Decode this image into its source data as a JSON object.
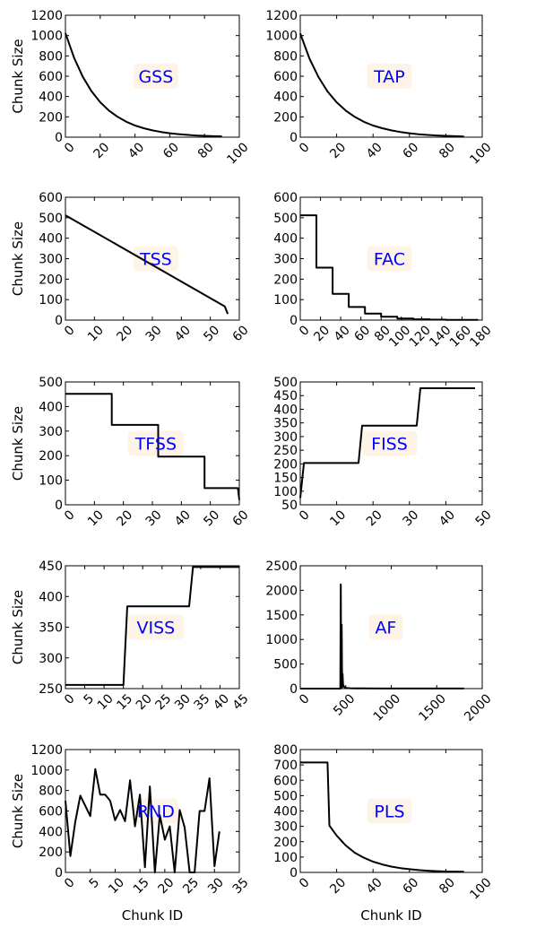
{
  "colors": {
    "line": "#000000",
    "annotation_text": "#0000ff",
    "annotation_box": "#fdf3e6",
    "background": "#ffffff"
  },
  "chart_data": [
    {
      "type": "line",
      "annotation": "GSS",
      "ylabel": "Chunk Size",
      "xlabel": "",
      "xlim": [
        0,
        100
      ],
      "ylim": [
        0,
        1200
      ],
      "xticks": [
        0,
        20,
        40,
        60,
        80,
        100
      ],
      "yticks": [
        0,
        200,
        400,
        600,
        800,
        1000,
        1200
      ],
      "grid": false,
      "series": [
        {
          "x": [
            0,
            5,
            10,
            15,
            20,
            25,
            30,
            35,
            40,
            45,
            50,
            55,
            60,
            65,
            70,
            75,
            80,
            85,
            90
          ],
          "y": [
            1024,
            780,
            594,
            452,
            344,
            262,
            200,
            152,
            116,
            88,
            67,
            51,
            39,
            30,
            23,
            17,
            13,
            10,
            8
          ]
        }
      ]
    },
    {
      "type": "line",
      "annotation": "TAP",
      "ylabel": "",
      "xlabel": "",
      "xlim": [
        0,
        100
      ],
      "ylim": [
        0,
        1200
      ],
      "xticks": [
        0,
        20,
        40,
        60,
        80,
        100
      ],
      "yticks": [
        0,
        200,
        400,
        600,
        800,
        1000,
        1200
      ],
      "grid": false,
      "series": [
        {
          "x": [
            0,
            5,
            10,
            15,
            20,
            25,
            30,
            35,
            40,
            45,
            50,
            55,
            60,
            65,
            70,
            75,
            80,
            85,
            90
          ],
          "y": [
            1020,
            777,
            592,
            450,
            343,
            261,
            199,
            151,
            115,
            88,
            67,
            51,
            39,
            29,
            22,
            17,
            13,
            10,
            7
          ]
        }
      ]
    },
    {
      "type": "line",
      "annotation": "TSS",
      "ylabel": "Chunk Size",
      "xlabel": "",
      "xlim": [
        0,
        60
      ],
      "ylim": [
        0,
        600
      ],
      "xticks": [
        0,
        10,
        20,
        30,
        40,
        50,
        60
      ],
      "yticks": [
        0,
        100,
        200,
        300,
        400,
        500,
        600
      ],
      "grid": false,
      "series": [
        {
          "x": [
            0,
            55,
            56
          ],
          "y": [
            512,
            67,
            30
          ]
        }
      ]
    },
    {
      "type": "line",
      "annotation": "FAC",
      "ylabel": "",
      "xlabel": "",
      "xlim": [
        0,
        180
      ],
      "ylim": [
        0,
        600
      ],
      "xticks": [
        0,
        20,
        40,
        60,
        80,
        100,
        120,
        140,
        160,
        180
      ],
      "yticks": [
        0,
        100,
        200,
        300,
        400,
        500,
        600
      ],
      "grid": false,
      "series": [
        {
          "x": [
            0,
            16,
            16,
            32,
            32,
            48,
            48,
            64,
            64,
            80,
            80,
            96,
            96,
            112,
            112,
            128,
            128,
            144,
            144,
            176
          ],
          "y": [
            512,
            512,
            256,
            256,
            128,
            128,
            64,
            64,
            32,
            32,
            16,
            16,
            8,
            8,
            4,
            4,
            2,
            2,
            1,
            1
          ]
        }
      ]
    },
    {
      "type": "line",
      "annotation": "TFSS",
      "ylabel": "Chunk Size",
      "xlabel": "",
      "xlim": [
        0,
        60
      ],
      "ylim": [
        0,
        500
      ],
      "xticks": [
        0,
        10,
        20,
        30,
        40,
        50,
        60
      ],
      "yticks": [
        0,
        100,
        200,
        300,
        400,
        500
      ],
      "grid": false,
      "series": [
        {
          "x": [
            0,
            16,
            16,
            32,
            32,
            48,
            48,
            59.5,
            60
          ],
          "y": [
            452,
            452,
            325,
            325,
            196,
            196,
            68,
            68,
            20
          ]
        }
      ]
    },
    {
      "type": "line",
      "annotation": "FISS",
      "ylabel": "",
      "xlabel": "",
      "xlim": [
        0,
        50
      ],
      "ylim": [
        50,
        500
      ],
      "xticks": [
        0,
        10,
        20,
        30,
        40,
        50
      ],
      "yticks": [
        50,
        100,
        150,
        200,
        250,
        300,
        350,
        400,
        450,
        500
      ],
      "grid": false,
      "series": [
        {
          "x": [
            0,
            1,
            16,
            17,
            32,
            33,
            48
          ],
          "y": [
            75,
            203,
            203,
            340,
            340,
            477,
            477
          ]
        }
      ]
    },
    {
      "type": "line",
      "annotation": "VISS",
      "ylabel": "Chunk Size",
      "xlabel": "",
      "xlim": [
        0,
        45
      ],
      "ylim": [
        250,
        450
      ],
      "xticks": [
        0,
        5,
        10,
        15,
        20,
        25,
        30,
        35,
        40,
        45
      ],
      "yticks": [
        250,
        300,
        350,
        400,
        450
      ],
      "grid": false,
      "series": [
        {
          "x": [
            0,
            15,
            16,
            32,
            33,
            45
          ],
          "y": [
            256,
            256,
            384,
            384,
            448,
            448
          ]
        }
      ]
    },
    {
      "type": "line",
      "annotation": "AF",
      "ylabel": "",
      "xlabel": "",
      "xlim": [
        0,
        2000
      ],
      "ylim": [
        0,
        2500
      ],
      "xticks": [
        0,
        500,
        1000,
        1500,
        2000
      ],
      "yticks": [
        0,
        500,
        1000,
        1500,
        2000,
        2500
      ],
      "grid": false,
      "series": [
        {
          "x": [
            0,
            440,
            445,
            450,
            455,
            460,
            465,
            470,
            480,
            490,
            500,
            550,
            600,
            700,
            900,
            1200,
            1500,
            1800
          ],
          "y": [
            0,
            0,
            2120,
            10,
            1300,
            30,
            300,
            80,
            40,
            25,
            15,
            8,
            5,
            3,
            2,
            1,
            1,
            1
          ]
        }
      ]
    },
    {
      "type": "line",
      "annotation": "RND",
      "ylabel": "Chunk Size",
      "xlabel": "Chunk ID",
      "xlim": [
        0,
        35
      ],
      "ylim": [
        0,
        1200
      ],
      "xticks": [
        0,
        5,
        10,
        15,
        20,
        25,
        30,
        35
      ],
      "yticks": [
        0,
        200,
        400,
        600,
        800,
        1000,
        1200
      ],
      "grid": false,
      "series": [
        {
          "x": [
            0,
            1,
            2,
            3,
            4,
            5,
            6,
            7,
            8,
            9,
            10,
            11,
            12,
            13,
            14,
            15,
            16,
            17,
            18,
            19,
            20,
            21,
            22,
            23,
            24,
            25,
            26,
            27,
            28,
            29,
            30,
            31
          ],
          "y": [
            700,
            160,
            500,
            750,
            650,
            550,
            1010,
            760,
            760,
            700,
            510,
            610,
            500,
            900,
            450,
            760,
            50,
            840,
            0,
            560,
            320,
            450,
            0,
            610,
            440,
            0,
            0,
            600,
            600,
            920,
            60,
            400
          ]
        }
      ]
    },
    {
      "type": "line",
      "annotation": "PLS",
      "ylabel": "",
      "xlabel": "Chunk ID",
      "xlim": [
        0,
        100
      ],
      "ylim": [
        0,
        800
      ],
      "xticks": [
        0,
        20,
        40,
        60,
        80,
        100
      ],
      "yticks": [
        0,
        100,
        200,
        300,
        400,
        500,
        600,
        700,
        800
      ],
      "grid": false,
      "series": [
        {
          "x": [
            0,
            15,
            16,
            20,
            25,
            30,
            35,
            40,
            45,
            50,
            55,
            60,
            65,
            70,
            75,
            80,
            85,
            90
          ],
          "y": [
            716,
            716,
            305,
            240,
            175,
            128,
            95,
            70,
            52,
            38,
            28,
            21,
            15,
            11,
            8,
            6,
            5,
            4
          ]
        }
      ]
    }
  ]
}
